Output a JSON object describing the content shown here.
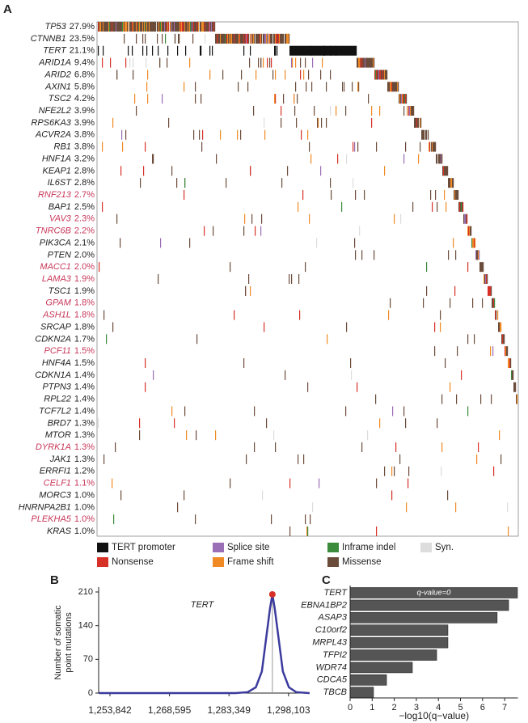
{
  "chart_data": [
    {
      "type": "oncoprint",
      "panel_label": "A",
      "genes": [
        "TP53",
        "CTNNB1",
        "TERT",
        "ARID1A",
        "ARID2",
        "AXIN1",
        "TSC2",
        "NFE2L2",
        "RPS6KA3",
        "ACVR2A",
        "RB1",
        "HNF1A",
        "KEAP1",
        "IL6ST",
        "RNF213",
        "BAP1",
        "VAV3",
        "TNRC6B",
        "PIK3CA",
        "PTEN",
        "MACC1",
        "LAMA3",
        "TSC1",
        "GPAM",
        "ASH1L",
        "SRCAP",
        "CDKN2A",
        "PCF11",
        "HNF4A",
        "CDKN1A",
        "PTPN3",
        "RPL22",
        "TCF7L2",
        "BRD7",
        "MTOR",
        "DYRK1A",
        "JAK1",
        "ERRFI1",
        "CELF1",
        "MORC3",
        "HNRNPA2B1",
        "PLEKHA5",
        "KRAS"
      ],
      "values": [
        27.9,
        23.5,
        21.1,
        9.4,
        6.8,
        5.8,
        4.2,
        3.9,
        3.9,
        3.8,
        3.8,
        3.2,
        2.8,
        2.8,
        2.7,
        2.5,
        2.3,
        2.2,
        2.1,
        2.0,
        2.0,
        1.9,
        1.9,
        1.8,
        1.8,
        1.8,
        1.7,
        1.5,
        1.5,
        1.4,
        1.4,
        1.4,
        1.4,
        1.3,
        1.3,
        1.3,
        1.3,
        1.2,
        1.1,
        1.0,
        1.0,
        1.0,
        1.0
      ],
      "value_labels": [
        "27.9%",
        "23.5%",
        "21.1%",
        "9.4%",
        "6.8%",
        "5.8%",
        "4.2%",
        "3.9%",
        "3.9%",
        "3.8%",
        "3.8%",
        "3.2%",
        "2.8%",
        "2.8%",
        "2.7%",
        "2.5%",
        "2.3%",
        "2.2%",
        "2.1%",
        "2.0%",
        "2.0%",
        "1.9%",
        "1.9%",
        "1.8%",
        "1.8%",
        "1.8%",
        "1.7%",
        "1.5%",
        "1.5%",
        "1.4%",
        "1.4%",
        "1.4%",
        "1.4%",
        "1.3%",
        "1.3%",
        "1.3%",
        "1.3%",
        "1.2%",
        "1.1%",
        "1.0%",
        "1.0%",
        "1.0%",
        "1.0%"
      ],
      "highlight": [
        false,
        false,
        false,
        false,
        false,
        false,
        false,
        false,
        false,
        false,
        false,
        false,
        false,
        false,
        true,
        false,
        true,
        true,
        false,
        false,
        true,
        true,
        false,
        true,
        true,
        false,
        false,
        true,
        false,
        false,
        false,
        false,
        false,
        false,
        false,
        true,
        false,
        false,
        true,
        false,
        false,
        true,
        false
      ],
      "highlight_color": "#c8385a",
      "promoter_row": 2,
      "series": [
        {
          "name": "TERT promoter",
          "color": "#111111"
        },
        {
          "name": "Nonsense",
          "color": "#d73027"
        },
        {
          "name": "Splice site",
          "color": "#9b6fb5"
        },
        {
          "name": "Frame shift",
          "color": "#f08a24"
        },
        {
          "name": "Inframe indel",
          "color": "#3c8a3c"
        },
        {
          "name": "Missense",
          "color": "#6b4c3a"
        },
        {
          "name": "Syn.",
          "color": "#dddddd"
        }
      ]
    },
    {
      "type": "line",
      "panel_label": "B",
      "title": "TERT",
      "ylabel": [
        "Number of somatic",
        "point mutations"
      ],
      "color": "#3b3b9e",
      "x": [
        1251100,
        1285000,
        1288000,
        1290000,
        1291500,
        1292500,
        1293500,
        1294100,
        1294700,
        1295700,
        1296700,
        1298200,
        1300000,
        1303300
      ],
      "values": [
        0,
        0,
        2,
        12,
        45,
        110,
        175,
        205,
        175,
        110,
        45,
        12,
        2,
        0
      ],
      "points": {
        "x": [
          1294100
        ],
        "values": [
          205
        ],
        "color": "#d73027"
      },
      "xlim": [
        1251040,
        1303350
      ],
      "xticks": [
        {
          "value": 1253842,
          "label": "1,253,842"
        },
        {
          "value": 1268595,
          "label": "1,268,595"
        },
        {
          "value": 1283349,
          "label": "1,283,349"
        },
        {
          "value": 1298103,
          "label": "1,298,103"
        }
      ],
      "ylim": [
        0,
        210
      ],
      "yticks": [
        0,
        70,
        140,
        210
      ]
    },
    {
      "type": "hbar",
      "panel_label": "C",
      "categories": [
        "TERT",
        "EBNA1BP2",
        "ASAP3",
        "C10orf2",
        "MRPL43",
        "TFPI2",
        "WDR74",
        "CDCA5",
        "TBCB"
      ],
      "values": [
        7.58,
        7.18,
        6.66,
        4.43,
        4.43,
        3.92,
        2.82,
        1.65,
        1.06
      ],
      "color": "#555555",
      "annotation": "q-value=0",
      "xlabel": "−log10(q−value)",
      "xlim": [
        0,
        7.6
      ],
      "xticks": [
        0,
        1,
        2,
        3,
        4,
        5,
        6,
        7
      ]
    }
  ]
}
